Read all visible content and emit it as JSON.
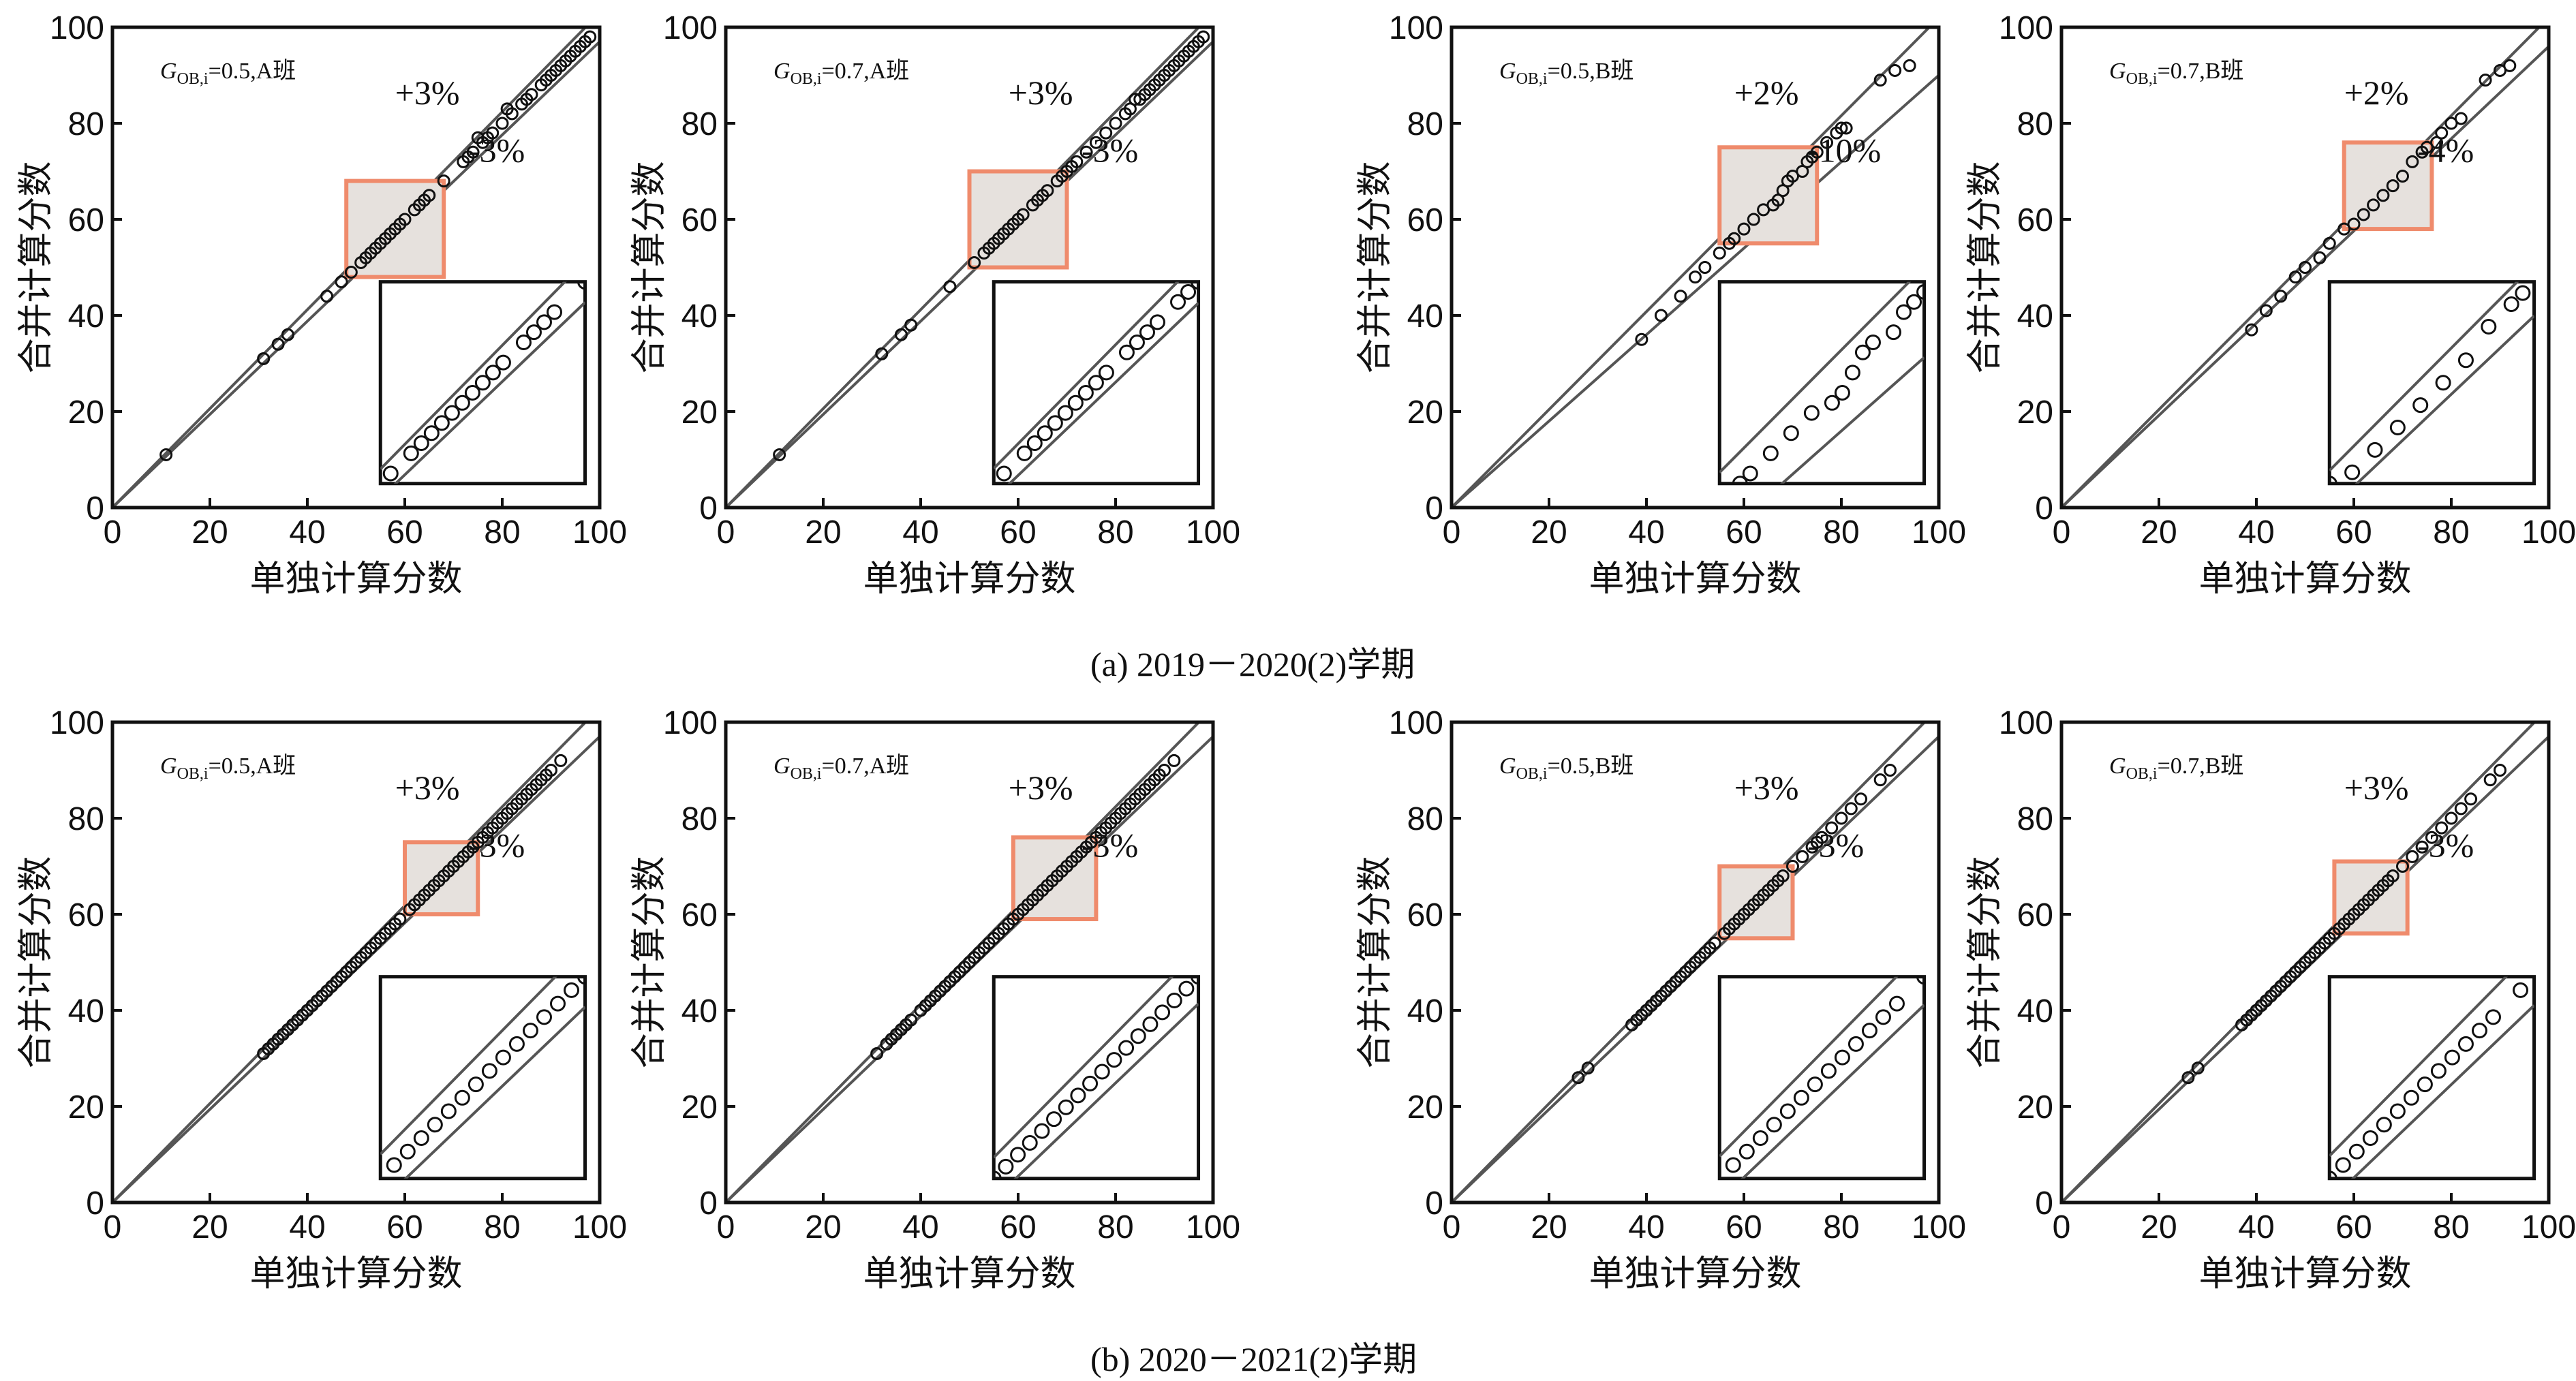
{
  "captions": {
    "a": "(a) 2019－2020(2)学期",
    "b": "(b) 2020－2021(2)学期"
  },
  "colors": {
    "axis": "#111111",
    "line": "#555555",
    "marker": "#111111",
    "highlight_fill": "#e6e1dd",
    "highlight_stroke": "#ef8b6c"
  },
  "chart_data": [
    {
      "type": "scatter",
      "row": "a",
      "xlabel": "单独计算分数",
      "ylabel": "合并计算分数",
      "xlim": [
        0,
        100
      ],
      "ylim": [
        0,
        100
      ],
      "xticks": [
        "0",
        "20",
        "40",
        "60",
        "80",
        "100"
      ],
      "yticks": [
        "0",
        "20",
        "40",
        "60",
        "80",
        "100"
      ],
      "annotation_g": "G",
      "annotation_sub": "OB,i",
      "annotation_rest": "=0.5,A班",
      "upper_label": "+3%",
      "lower_label": "-3%",
      "upper_pct": 3,
      "lower_pct": -3,
      "highlight": [
        48,
        68
      ],
      "x": [
        11,
        31,
        34,
        36,
        44,
        47,
        49,
        51,
        52,
        53,
        54,
        55,
        56,
        57,
        58,
        59,
        60,
        62,
        63,
        64,
        65,
        68,
        72,
        73,
        74,
        75,
        76,
        77,
        78,
        80,
        81,
        82,
        84,
        85,
        86,
        88,
        89,
        90,
        91,
        92,
        93,
        94,
        95,
        96,
        97,
        98
      ],
      "y": [
        11,
        31,
        34,
        36,
        44,
        47,
        49,
        51,
        52,
        53,
        54,
        55,
        56,
        57,
        58,
        59,
        60,
        62,
        63,
        64,
        65,
        68,
        72,
        73,
        74,
        77,
        76,
        77,
        78,
        80,
        83,
        82,
        84,
        85,
        86,
        88,
        89,
        90,
        91,
        92,
        93,
        94,
        95,
        96,
        97,
        98
      ]
    },
    {
      "type": "scatter",
      "row": "a",
      "xlabel": "单独计算分数",
      "ylabel": "合并计算分数",
      "xlim": [
        0,
        100
      ],
      "ylim": [
        0,
        100
      ],
      "xticks": [
        "0",
        "20",
        "40",
        "60",
        "80",
        "100"
      ],
      "yticks": [
        "0",
        "20",
        "40",
        "60",
        "80",
        "100"
      ],
      "annotation_g": "G",
      "annotation_sub": "OB,i",
      "annotation_rest": "=0.7,A班",
      "upper_label": "+3%",
      "lower_label": "-3%",
      "upper_pct": 3,
      "lower_pct": -3,
      "highlight": [
        50,
        70
      ],
      "x": [
        11,
        32,
        36,
        38,
        46,
        51,
        53,
        54,
        55,
        56,
        57,
        58,
        59,
        60,
        61,
        63,
        64,
        65,
        66,
        68,
        69,
        70,
        71,
        72,
        74,
        76,
        78,
        80,
        82,
        83,
        84,
        85,
        86,
        87,
        88,
        89,
        90,
        91,
        92,
        93,
        94,
        95,
        96,
        97,
        98
      ],
      "y": [
        11,
        32,
        36,
        38,
        46,
        51,
        53,
        54,
        55,
        56,
        57,
        58,
        59,
        60,
        61,
        63,
        64,
        65,
        66,
        68,
        69,
        70,
        71,
        72,
        74,
        76,
        78,
        80,
        82,
        83,
        85,
        85,
        86,
        87,
        88,
        89,
        90,
        91,
        92,
        93,
        94,
        95,
        96,
        97,
        98
      ]
    },
    {
      "type": "scatter",
      "row": "a",
      "xlabel": "单独计算分数",
      "ylabel": "合并计算分数",
      "xlim": [
        0,
        100
      ],
      "ylim": [
        0,
        100
      ],
      "xticks": [
        "0",
        "20",
        "40",
        "60",
        "80",
        "100"
      ],
      "yticks": [
        "0",
        "20",
        "40",
        "60",
        "80",
        "100"
      ],
      "annotation_g": "G",
      "annotation_sub": "OB,i",
      "annotation_rest": "=0.5,B班",
      "upper_label": "+2%",
      "lower_label": "-10%",
      "upper_pct": 2,
      "lower_pct": -10,
      "highlight": [
        55,
        75
      ],
      "x": [
        39,
        43,
        47,
        50,
        52,
        55,
        57,
        58,
        60,
        62,
        64,
        66,
        67,
        68,
        69,
        70,
        72,
        73,
        74,
        75,
        77,
        79,
        80,
        81,
        88,
        91,
        94
      ],
      "y": [
        35,
        40,
        44,
        48,
        50,
        53,
        55,
        56,
        58,
        60,
        62,
        63,
        64,
        66,
        68,
        69,
        70,
        72,
        73,
        74,
        76,
        78,
        79,
        79,
        89,
        91,
        92
      ]
    },
    {
      "type": "scatter",
      "row": "a",
      "xlabel": "单独计算分数",
      "ylabel": "合并计算分数",
      "xlim": [
        0,
        100
      ],
      "ylim": [
        0,
        100
      ],
      "xticks": [
        "0",
        "20",
        "40",
        "60",
        "80",
        "100"
      ],
      "yticks": [
        "0",
        "20",
        "40",
        "60",
        "80",
        "100"
      ],
      "annotation_g": "G",
      "annotation_sub": "OB,i",
      "annotation_rest": "=0.7,B班",
      "upper_label": "+2%",
      "lower_label": "-4%",
      "upper_pct": 2,
      "lower_pct": -4,
      "highlight": [
        58,
        76
      ],
      "x": [
        39,
        42,
        45,
        48,
        50,
        53,
        55,
        58,
        60,
        62,
        64,
        66,
        68,
        70,
        72,
        74,
        75,
        77,
        78,
        80,
        82,
        87,
        90,
        92
      ],
      "y": [
        37,
        41,
        44,
        48,
        50,
        52,
        55,
        58,
        59,
        61,
        63,
        65,
        67,
        69,
        72,
        74,
        75,
        76,
        78,
        80,
        81,
        89,
        91,
        92
      ]
    },
    {
      "type": "scatter",
      "row": "b",
      "xlabel": "单独计算分数",
      "ylabel": "合并计算分数",
      "xlim": [
        0,
        100
      ],
      "ylim": [
        0,
        100
      ],
      "xticks": [
        "0",
        "20",
        "40",
        "60",
        "80",
        "100"
      ],
      "yticks": [
        "0",
        "20",
        "40",
        "60",
        "80",
        "100"
      ],
      "annotation_g": "G",
      "annotation_sub": "OB,i",
      "annotation_rest": "=0.5,A班",
      "upper_label": "+3%",
      "lower_label": "-3%",
      "upper_pct": 3,
      "lower_pct": -3,
      "highlight": [
        60,
        75
      ],
      "x": [
        31,
        32,
        33,
        34,
        35,
        36,
        37,
        38,
        39,
        40,
        41,
        42,
        43,
        44,
        45,
        46,
        47,
        48,
        49,
        50,
        51,
        52,
        53,
        54,
        55,
        56,
        57,
        58,
        59,
        61,
        62,
        63,
        64,
        65,
        66,
        67,
        68,
        69,
        70,
        71,
        72,
        73,
        74,
        75,
        76,
        77,
        78,
        79,
        80,
        81,
        82,
        83,
        84,
        85,
        86,
        87,
        88,
        89,
        90,
        92
      ],
      "y": [
        31,
        32,
        33,
        34,
        35,
        36,
        37,
        38,
        39,
        40,
        41,
        42,
        43,
        44,
        45,
        46,
        47,
        48,
        49,
        50,
        51,
        52,
        53,
        54,
        55,
        56,
        57,
        58,
        59,
        61,
        62,
        63,
        64,
        65,
        66,
        67,
        68,
        69,
        70,
        71,
        72,
        73,
        74,
        75,
        76,
        77,
        78,
        79,
        80,
        81,
        82,
        83,
        84,
        85,
        86,
        87,
        88,
        89,
        90,
        92
      ]
    },
    {
      "type": "scatter",
      "row": "b",
      "xlabel": "单独计算分数",
      "ylabel": "合并计算分数",
      "xlim": [
        0,
        100
      ],
      "ylim": [
        0,
        100
      ],
      "xticks": [
        "0",
        "20",
        "40",
        "60",
        "80",
        "100"
      ],
      "yticks": [
        "0",
        "20",
        "40",
        "60",
        "80",
        "100"
      ],
      "annotation_g": "G",
      "annotation_sub": "OB,i",
      "annotation_rest": "=0.7,A班",
      "upper_label": "+3%",
      "lower_label": "-3%",
      "upper_pct": 3,
      "lower_pct": -3,
      "highlight": [
        59,
        76
      ],
      "x": [
        31,
        33,
        34,
        35,
        36,
        37,
        38,
        40,
        41,
        42,
        43,
        44,
        45,
        46,
        47,
        48,
        49,
        50,
        51,
        52,
        53,
        54,
        55,
        56,
        57,
        58,
        59,
        60,
        61,
        62,
        63,
        64,
        65,
        66,
        67,
        68,
        69,
        70,
        71,
        72,
        73,
        74,
        75,
        76,
        77,
        78,
        79,
        80,
        81,
        82,
        83,
        84,
        85,
        86,
        87,
        88,
        89,
        90,
        92
      ],
      "y": [
        31,
        33,
        34,
        35,
        36,
        37,
        38,
        40,
        41,
        42,
        43,
        44,
        45,
        46,
        47,
        48,
        49,
        50,
        51,
        52,
        53,
        54,
        55,
        56,
        57,
        58,
        59,
        60,
        61,
        62,
        63,
        64,
        65,
        66,
        67,
        68,
        69,
        70,
        71,
        72,
        73,
        74,
        75,
        76,
        77,
        78,
        79,
        80,
        81,
        82,
        83,
        84,
        85,
        86,
        87,
        88,
        89,
        90,
        92
      ]
    },
    {
      "type": "scatter",
      "row": "b",
      "xlabel": "单独计算分数",
      "ylabel": "合并计算分数",
      "xlim": [
        0,
        100
      ],
      "ylim": [
        0,
        100
      ],
      "xticks": [
        "0",
        "20",
        "40",
        "60",
        "80",
        "100"
      ],
      "yticks": [
        "0",
        "20",
        "40",
        "60",
        "80",
        "100"
      ],
      "annotation_g": "G",
      "annotation_sub": "OB,i",
      "annotation_rest": "=0.5,B班",
      "upper_label": "+3%",
      "lower_label": "-3%",
      "upper_pct": 3,
      "lower_pct": -3,
      "highlight": [
        55,
        70
      ],
      "x": [
        26,
        28,
        37,
        38,
        39,
        40,
        41,
        42,
        43,
        44,
        45,
        46,
        47,
        48,
        49,
        50,
        51,
        52,
        53,
        54,
        56,
        57,
        58,
        59,
        60,
        61,
        62,
        63,
        64,
        65,
        66,
        67,
        68,
        70,
        72,
        74,
        75,
        76,
        78,
        80,
        82,
        84,
        88,
        90
      ],
      "y": [
        26,
        28,
        37,
        38,
        39,
        40,
        41,
        42,
        43,
        44,
        45,
        46,
        47,
        48,
        49,
        50,
        51,
        52,
        53,
        54,
        56,
        57,
        58,
        59,
        60,
        61,
        62,
        63,
        64,
        65,
        66,
        67,
        68,
        70,
        72,
        74,
        75,
        76,
        78,
        80,
        82,
        84,
        88,
        90
      ]
    },
    {
      "type": "scatter",
      "row": "b",
      "xlabel": "单独计算分数",
      "ylabel": "合并计算分数",
      "xlim": [
        0,
        100
      ],
      "ylim": [
        0,
        100
      ],
      "xticks": [
        "0",
        "20",
        "40",
        "60",
        "80",
        "100"
      ],
      "yticks": [
        "0",
        "20",
        "40",
        "60",
        "80",
        "100"
      ],
      "annotation_g": "G",
      "annotation_sub": "OB,i",
      "annotation_rest": "=0.7,B班",
      "upper_label": "+3%",
      "lower_label": "-3%",
      "upper_pct": 3,
      "lower_pct": -3,
      "highlight": [
        56,
        71
      ],
      "x": [
        26,
        28,
        37,
        38,
        39,
        40,
        41,
        42,
        43,
        44,
        45,
        46,
        47,
        48,
        49,
        50,
        51,
        52,
        53,
        54,
        55,
        56,
        57,
        58,
        59,
        60,
        61,
        62,
        63,
        64,
        65,
        66,
        67,
        68,
        70,
        72,
        74,
        76,
        78,
        80,
        82,
        84,
        88,
        90
      ],
      "y": [
        26,
        28,
        37,
        38,
        39,
        40,
        41,
        42,
        43,
        44,
        45,
        46,
        47,
        48,
        49,
        50,
        51,
        52,
        53,
        54,
        55,
        56,
        57,
        58,
        59,
        60,
        61,
        62,
        63,
        64,
        65,
        66,
        67,
        68,
        70,
        72,
        74,
        76,
        78,
        80,
        82,
        84,
        88,
        90
      ]
    }
  ]
}
